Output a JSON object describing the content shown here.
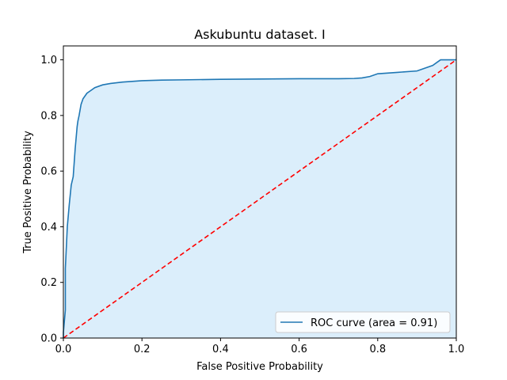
{
  "chart_data": {
    "type": "area",
    "title": "Askubuntu dataset. I",
    "xlabel": "False Positive Probability",
    "ylabel": "True Positive Probability",
    "xlim": [
      0,
      1
    ],
    "ylim": [
      0,
      1.05
    ],
    "xticks": [
      0.0,
      0.2,
      0.4,
      0.6,
      0.8,
      1.0
    ],
    "xtick_labels": [
      "0.0",
      "0.2",
      "0.4",
      "0.6",
      "0.8",
      "1.0"
    ],
    "yticks": [
      0.0,
      0.2,
      0.4,
      0.6,
      0.8,
      1.0
    ],
    "ytick_labels": [
      "0.0",
      "0.2",
      "0.4",
      "0.6",
      "0.8",
      "1.0"
    ],
    "grid": false,
    "legend_position": "lower-right",
    "series": [
      {
        "name": "ROC curve (area = 0.91)",
        "kind": "line-with-fill",
        "color": "#1f77b4",
        "fill_color": "#dbeefb",
        "x": [
          0.0,
          0.0,
          0.005,
          0.005,
          0.01,
          0.015,
          0.02,
          0.025,
          0.03,
          0.035,
          0.037,
          0.04,
          0.045,
          0.05,
          0.055,
          0.06,
          0.07,
          0.08,
          0.1,
          0.12,
          0.15,
          0.2,
          0.25,
          0.3,
          0.4,
          0.5,
          0.6,
          0.7,
          0.74,
          0.76,
          0.78,
          0.8,
          0.85,
          0.9,
          0.92,
          0.94,
          0.95,
          0.96,
          1.0
        ],
        "y": [
          0.0,
          0.02,
          0.1,
          0.25,
          0.4,
          0.48,
          0.55,
          0.58,
          0.68,
          0.76,
          0.78,
          0.8,
          0.84,
          0.86,
          0.87,
          0.88,
          0.89,
          0.9,
          0.91,
          0.915,
          0.92,
          0.925,
          0.927,
          0.928,
          0.93,
          0.931,
          0.932,
          0.932,
          0.933,
          0.935,
          0.94,
          0.95,
          0.955,
          0.96,
          0.97,
          0.98,
          0.99,
          1.0,
          1.0
        ]
      },
      {
        "name": "",
        "kind": "dashed-line",
        "color": "#ff0000",
        "x": [
          0.0,
          1.0
        ],
        "y": [
          0.0,
          1.0
        ]
      }
    ]
  }
}
